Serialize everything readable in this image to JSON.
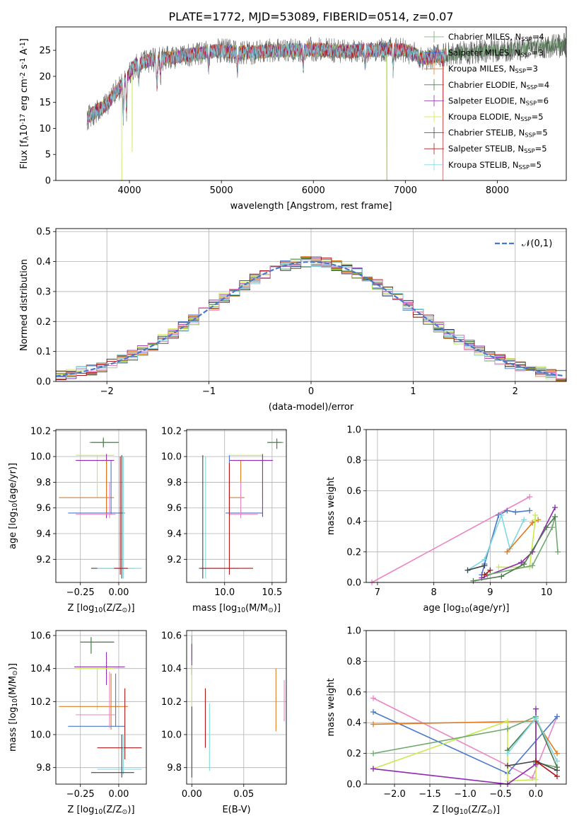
{
  "figure_title": "PLATE=1772, MJD=53089, FIBERID=0514, z=0.07",
  "models": [
    {
      "name": "Chabrier MILES",
      "nssp": "4",
      "color": "#6fa86f"
    },
    {
      "name": "Salpeter MILES",
      "nssp": "3",
      "color": "#4a78c8"
    },
    {
      "name": "Kroupa MILES",
      "nssp": "3",
      "color": "#e07b1f"
    },
    {
      "name": "Chabrier ELODIE",
      "nssp": "4",
      "color": "#4c7a4c"
    },
    {
      "name": "Salpeter ELODIE",
      "nssp": "6",
      "color": "#8e2bb0"
    },
    {
      "name": "Kroupa ELODIE",
      "nssp": "5",
      "color": "#c9ea4a"
    },
    {
      "name": "Chabrier STELIB",
      "nssp": "5",
      "color": "#444444"
    },
    {
      "name": "Salpeter STELIB",
      "nssp": "5",
      "color": "#b01818"
    },
    {
      "name": "Kroupa STELIB",
      "nssp": "5",
      "color": "#7fd8e2"
    }
  ],
  "chart_data": [
    {
      "id": "spectrum",
      "type": "line",
      "xlabel": "wavelength [Angstrom, rest frame]",
      "ylabel": "Flux [f$_\\lambda$10$^{-17}$ erg cm$^{-2}$ s$^{-1}$ A$^{-1}$]",
      "xlim": [
        3200,
        8750
      ],
      "ylim": [
        0,
        29.5
      ],
      "xticks": [
        4000,
        5000,
        6000,
        7000,
        8000
      ],
      "yticks": [
        0,
        5,
        10,
        15,
        20,
        25
      ],
      "continuum": [
        [
          3540,
          12
        ],
        [
          3650,
          13.5
        ],
        [
          3750,
          14.5
        ],
        [
          3850,
          17
        ],
        [
          3950,
          19
        ],
        [
          4050,
          22
        ],
        [
          4200,
          23
        ],
        [
          4400,
          23.5
        ],
        [
          4600,
          24
        ],
        [
          4800,
          24.5
        ],
        [
          5000,
          25
        ],
        [
          5200,
          24.5
        ],
        [
          5400,
          24.7
        ],
        [
          5600,
          25
        ],
        [
          5800,
          25
        ],
        [
          6000,
          25.2
        ],
        [
          6200,
          25
        ],
        [
          6400,
          24.8
        ],
        [
          6600,
          25
        ],
        [
          6800,
          25.2
        ],
        [
          7000,
          25
        ],
        [
          7200,
          23.5
        ],
        [
          7400,
          24
        ],
        [
          7600,
          24.5
        ],
        [
          7800,
          24.8
        ],
        [
          8000,
          25
        ],
        [
          8200,
          25.2
        ],
        [
          8400,
          25.5
        ],
        [
          8600,
          25.8
        ],
        [
          8750,
          26
        ]
      ],
      "absorption_features": [
        [
          3933,
          12
        ],
        [
          3968,
          13
        ],
        [
          4101,
          19
        ],
        [
          4300,
          18
        ],
        [
          4340,
          20
        ],
        [
          4861,
          21
        ],
        [
          5175,
          21
        ],
        [
          5890,
          22
        ],
        [
          6563,
          22
        ],
        [
          6867,
          21
        ],
        [
          7150,
          22.5
        ]
      ],
      "spikes": [
        [
          3915,
          0
        ],
        [
          6800,
          0
        ],
        [
          7400,
          0
        ]
      ],
      "legend_loc": "upper right"
    },
    {
      "id": "residuals",
      "type": "histogram",
      "xlabel": "(data-model)/error",
      "ylabel": "Normed distribution",
      "xlim": [
        -2.5,
        2.5
      ],
      "ylim": [
        0,
        0.51
      ],
      "xticks": [
        -2,
        -1,
        0,
        1,
        2
      ],
      "xtick_labels": [
        "−2",
        "−1",
        "0",
        "1",
        "2"
      ],
      "yticks": [
        0.0,
        0.1,
        0.2,
        0.3,
        0.4,
        0.5
      ],
      "bin_width": 0.1,
      "curve_label": "$\\mathcal{N}(0,1)$",
      "curve_color": "#4a78c8",
      "extra_colors": [
        "#e986c4"
      ],
      "grid": true,
      "legend_loc": "upper right"
    },
    {
      "id": "age_vs_Z",
      "type": "errorbar",
      "xlabel": "Z [log$_{10}$(Z/Z$_\\odot$)]",
      "ylabel": "age  [log$_{10}$(age/yr)]",
      "xlim": [
        -0.41,
        0.18
      ],
      "ylim": [
        9.02,
        10.21
      ],
      "xticks": [
        -0.25,
        0.0
      ],
      "xtick_labels": [
        "−0.25",
        "0.00"
      ],
      "yticks": [
        9.2,
        9.4,
        9.6,
        9.8,
        10.0,
        10.2
      ],
      "points": [
        {
          "c": "#6fa86f",
          "x": -0.1,
          "y": 10.11,
          "xl": -0.19,
          "xh": 0.0,
          "yl": 10.08,
          "yh": 10.15
        },
        {
          "c": "#4c7a4c",
          "x": -0.1,
          "y": 10.11,
          "xl": -0.18,
          "xh": -0.0,
          "yl": 10.07,
          "yh": 10.14
        },
        {
          "c": "#c9ea4a",
          "x": -0.14,
          "y": 10.01,
          "xl": -0.28,
          "xh": -0.03,
          "yl": 9.68,
          "yh": 10.01
        },
        {
          "c": "#8e2bb0",
          "x": -0.08,
          "y": 9.97,
          "xl": -0.28,
          "xh": -0.03,
          "yl": 9.52,
          "yh": 10.02
        },
        {
          "c": "#e07b1f",
          "x": -0.08,
          "y": 9.68,
          "xl": -0.39,
          "xh": -0.03,
          "yl": 9.55,
          "yh": 9.97
        },
        {
          "c": "#4a78c8",
          "x": -0.05,
          "y": 9.56,
          "xl": -0.33,
          "xh": 0.04,
          "yl": 9.55,
          "yh": 9.97
        },
        {
          "c": "#e986c4",
          "x": -0.06,
          "y": 9.55,
          "xl": -0.28,
          "xh": -0.02,
          "yl": 9.52,
          "yh": 9.8
        },
        {
          "c": "#444444",
          "x": 0.02,
          "y": 9.13,
          "xl": -0.18,
          "xh": 0.1,
          "yl": 9.05,
          "yh": 10.01
        },
        {
          "c": "#7fd8e2",
          "x": 0.03,
          "y": 9.13,
          "xl": -0.14,
          "xh": 0.15,
          "yl": 9.05,
          "yh": 10.0
        },
        {
          "c": "#b01818",
          "x": 0.01,
          "y": 9.13,
          "xl": -0.03,
          "xh": 0.06,
          "yl": 9.08,
          "yh": 10.0
        }
      ]
    },
    {
      "id": "age_vs_mass",
      "type": "errorbar",
      "xlabel": "mass [log$_{10}$(M/M$_\\odot$)]",
      "ylabel": "",
      "xlim": [
        9.6,
        10.65
      ],
      "ylim": [
        9.02,
        10.21
      ],
      "xticks": [
        10.0,
        10.5
      ],
      "xtick_labels": [
        "10.0",
        "10.5"
      ],
      "yticks": [
        9.2,
        9.4,
        9.6,
        9.8,
        10.0,
        10.2
      ],
      "points": [
        {
          "c": "#6fa86f",
          "x": 10.55,
          "y": 10.11,
          "xl": 10.45,
          "xh": 10.62,
          "yl": 10.06,
          "yh": 10.14
        },
        {
          "c": "#4c7a4c",
          "x": 10.55,
          "y": 10.11,
          "xl": 10.45,
          "xh": 10.6,
          "yl": 10.06,
          "yh": 10.14
        },
        {
          "c": "#c9ea4a",
          "x": 10.4,
          "y": 10.01,
          "xl": 10.05,
          "xh": 10.4,
          "yl": 9.68,
          "yh": 10.01
        },
        {
          "c": "#8e2bb0",
          "x": 10.4,
          "y": 9.97,
          "xl": 10.05,
          "xh": 10.51,
          "yl": 9.53,
          "yh": 10.02
        },
        {
          "c": "#e07b1f",
          "x": 10.17,
          "y": 9.68,
          "xl": 10.05,
          "xh": 10.21,
          "yl": 9.55,
          "yh": 9.97
        },
        {
          "c": "#4a78c8",
          "x": 10.05,
          "y": 9.56,
          "xl": 10.01,
          "xh": 10.4,
          "yl": 9.55,
          "yh": 10.01
        },
        {
          "c": "#e986c4",
          "x": 10.17,
          "y": 9.55,
          "xl": 10.05,
          "xh": 10.35,
          "yl": 9.52,
          "yh": 9.8
        },
        {
          "c": "#444444",
          "x": 9.77,
          "y": 9.13,
          "xl": 9.73,
          "xh": 10.15,
          "yl": 9.05,
          "yh": 10.01
        },
        {
          "c": "#7fd8e2",
          "x": 9.8,
          "y": 9.13,
          "xl": 9.76,
          "xh": 9.82,
          "yl": 9.05,
          "yh": 10.0
        },
        {
          "c": "#b01818",
          "x": 10.05,
          "y": 9.13,
          "xl": 9.75,
          "xh": 10.3,
          "yl": 9.08,
          "yh": 9.95
        }
      ]
    },
    {
      "id": "weight_vs_age",
      "type": "line",
      "xlabel": "age  [log$_{10}$(age/yr)]",
      "ylabel": "mass weight",
      "xlim": [
        6.8,
        10.35
      ],
      "ylim": [
        0,
        1.0
      ],
      "xticks": [
        7,
        8,
        9,
        10
      ],
      "xtick_labels": [
        "7",
        "8",
        "9",
        "10"
      ],
      "yticks": [
        0.0,
        0.2,
        0.4,
        0.6,
        0.8,
        1.0
      ],
      "series": [
        {
          "c": "#e986c4",
          "x": [
            6.9,
            9.7
          ],
          "y": [
            0.0,
            0.56
          ]
        },
        {
          "c": "#4a78c8",
          "x": [
            8.85,
            8.9,
            9.15,
            9.3,
            9.45,
            9.7
          ],
          "y": [
            0.05,
            0.12,
            0.44,
            0.47,
            0.46,
            0.47
          ]
        },
        {
          "c": "#7fd8e2",
          "x": [
            8.6,
            8.9,
            9.2,
            9.35,
            9.6
          ],
          "y": [
            0.08,
            0.15,
            0.44,
            0.22,
            0.41
          ]
        },
        {
          "c": "#e07b1f",
          "x": [
            9.3,
            9.75,
            9.85
          ],
          "y": [
            0.2,
            0.39,
            0.41
          ]
        },
        {
          "c": "#c9ea4a",
          "x": [
            9.15,
            9.7,
            9.8,
            9.8
          ],
          "y": [
            0.1,
            0.1,
            0.41,
            0.44
          ]
        },
        {
          "c": "#8e2bb0",
          "x": [
            8.85,
            9.55,
            9.75,
            10.15
          ],
          "y": [
            0.03,
            0.13,
            0.2,
            0.49
          ]
        },
        {
          "c": "#6fa86f",
          "x": [
            8.95,
            9.75,
            10.1,
            10.15,
            10.2
          ],
          "y": [
            0.05,
            0.11,
            0.36,
            0.43,
            0.2
          ]
        },
        {
          "c": "#4c7a4c",
          "x": [
            8.7,
            9.2,
            9.6,
            10.0,
            10.15
          ],
          "y": [
            0.01,
            0.04,
            0.12,
            0.36,
            0.43
          ]
        },
        {
          "c": "#444444",
          "x": [
            8.6,
            8.9
          ],
          "y": [
            0.08,
            0.11
          ]
        },
        {
          "c": "#b01818",
          "x": [
            8.9,
            9.0
          ],
          "y": [
            0.05,
            0.08
          ]
        }
      ]
    },
    {
      "id": "mass_vs_Z",
      "type": "errorbar",
      "xlabel": "Z [log$_{10}$(Z/Z$_\\odot$)]",
      "ylabel": "mass [log$_{10}$(M/M$_\\odot$)]",
      "xlim": [
        -0.41,
        0.18
      ],
      "ylim": [
        9.7,
        10.63
      ],
      "xticks": [
        -0.25,
        0.0
      ],
      "xtick_labels": [
        "−0.25",
        "0.00"
      ],
      "yticks": [
        9.8,
        10.0,
        10.2,
        10.4,
        10.6
      ],
      "points": [
        {
          "c": "#6fa86f",
          "x": -0.18,
          "y": 10.56,
          "xl": -0.25,
          "xh": -0.03,
          "yl": 10.49,
          "yh": 10.59
        },
        {
          "c": "#4c7a4c",
          "x": -0.18,
          "y": 10.56,
          "xl": -0.25,
          "xh": -0.03,
          "yl": 10.49,
          "yh": 10.59
        },
        {
          "c": "#8e2bb0",
          "x": -0.08,
          "y": 10.41,
          "xl": -0.29,
          "xh": 0.04,
          "yl": 10.3,
          "yh": 10.5
        },
        {
          "c": "#c9ea4a",
          "x": -0.14,
          "y": 10.4,
          "xl": -0.28,
          "xh": -0.03,
          "yl": 10.15,
          "yh": 10.4
        },
        {
          "c": "#e07b1f",
          "x": -0.05,
          "y": 10.17,
          "xl": -0.39,
          "xh": 0.06,
          "yl": 10.03,
          "yh": 10.37
        },
        {
          "c": "#4a78c8",
          "x": -0.02,
          "y": 10.05,
          "xl": -0.33,
          "xh": 0.04,
          "yl": 10.05,
          "yh": 10.37
        },
        {
          "c": "#e986c4",
          "x": -0.06,
          "y": 10.12,
          "xl": -0.28,
          "xh": -0.02,
          "yl": 10.04,
          "yh": 10.38
        },
        {
          "c": "#b01818",
          "x": 0.04,
          "y": 9.92,
          "xl": -0.14,
          "xh": 0.15,
          "yl": 9.85,
          "yh": 10.28
        },
        {
          "c": "#7fd8e2",
          "x": 0.03,
          "y": 9.79,
          "xl": -0.14,
          "xh": 0.15,
          "yl": 9.76,
          "yh": 10.0
        },
        {
          "c": "#444444",
          "x": 0.02,
          "y": 9.77,
          "xl": -0.18,
          "xh": 0.1,
          "yl": 9.74,
          "yh": 10.0
        }
      ]
    },
    {
      "id": "mass_vs_EBV",
      "type": "errorbar",
      "xlabel": "E(B-V)",
      "ylabel": "",
      "xlim": [
        -0.005,
        0.091
      ],
      "ylim": [
        9.7,
        10.63
      ],
      "xticks": [
        0.0,
        0.05
      ],
      "xtick_labels": [
        "0.00",
        "0.05"
      ],
      "yticks": [
        9.8,
        10.0,
        10.2,
        10.4,
        10.6
      ],
      "points": [
        {
          "c": "#6fa86f",
          "x": 0.0,
          "y": 10.56,
          "xl": 0.0,
          "xh": 0.0,
          "yl": 10.45,
          "yh": 10.6
        },
        {
          "c": "#8e2bb0",
          "x": 0.0,
          "y": 10.41,
          "xl": 0.0,
          "xh": 0.0,
          "yl": 10.36,
          "yh": 10.55
        },
        {
          "c": "#c9ea4a",
          "x": 0.0,
          "y": 10.4,
          "xl": 0.0,
          "xh": 0.0,
          "yl": 10.16,
          "yh": 10.42
        },
        {
          "c": "#444444",
          "x": 0.0,
          "y": 9.77,
          "xl": 0.0,
          "xh": 0.0,
          "yl": 9.74,
          "yh": 10.17
        },
        {
          "c": "#b01818",
          "x": 0.013,
          "y": 9.92,
          "xl": 0.013,
          "xh": 0.013,
          "yl": 9.92,
          "yh": 10.28
        },
        {
          "c": "#7fd8e2",
          "x": 0.017,
          "y": 9.79,
          "xl": 0.017,
          "xh": 0.017,
          "yl": 9.78,
          "yh": 10.19
        },
        {
          "c": "#e07b1f",
          "x": 0.081,
          "y": 10.17,
          "xl": 0.081,
          "xh": 0.081,
          "yl": 10.02,
          "yh": 10.4
        },
        {
          "c": "#e986c4",
          "x": 0.089,
          "y": 10.12,
          "xl": 0.089,
          "xh": 0.089,
          "yl": 10.08,
          "yh": 10.33
        }
      ]
    },
    {
      "id": "weight_vs_Z",
      "type": "line",
      "xlabel": "Z [log$_{10}$(Z/Z$_\\odot$)]",
      "ylabel": "mass weight",
      "xlim": [
        -2.4,
        0.43
      ],
      "ylim": [
        0,
        1.0
      ],
      "xticks": [
        -2.0,
        -1.5,
        -1.0,
        -0.5,
        0.0
      ],
      "xtick_labels": [
        "−2.0",
        "−1.5",
        "−1.0",
        "−0.5",
        "0.0"
      ],
      "yticks": [
        0.0,
        0.2,
        0.4,
        0.6,
        0.8,
        1.0
      ],
      "series": [
        {
          "c": "#e986c4",
          "x": [
            -2.3,
            -0.05,
            0.3
          ],
          "y": [
            0.56,
            0.04,
            0.44
          ]
        },
        {
          "c": "#4a78c8",
          "x": [
            -2.3,
            -0.4,
            0.3
          ],
          "y": [
            0.47,
            0.07,
            0.44
          ]
        },
        {
          "c": "#e07b1f",
          "x": [
            -2.3,
            0.0,
            0.3
          ],
          "y": [
            0.39,
            0.41,
            0.2
          ]
        },
        {
          "c": "#c9ea4a",
          "x": [
            -2.3,
            -0.4,
            -0.4,
            0.0,
            0.0
          ],
          "y": [
            0.1,
            0.41,
            0.02,
            0.03,
            0.44
          ]
        },
        {
          "c": "#6fa86f",
          "x": [
            -2.3,
            -0.4,
            0.0,
            0.0,
            0.3
          ],
          "y": [
            0.2,
            0.36,
            0.44,
            0.14,
            0.11
          ]
        },
        {
          "c": "#8e2bb0",
          "x": [
            -2.3,
            -0.4,
            0.0,
            0.0
          ],
          "y": [
            0.1,
            0.0,
            0.13,
            0.49
          ]
        },
        {
          "c": "#4c7a4c",
          "x": [
            -0.4,
            0.0,
            0.3
          ],
          "y": [
            0.22,
            0.43,
            0.11
          ]
        },
        {
          "c": "#7fd8e2",
          "x": [
            -0.4,
            0.0,
            0.3
          ],
          "y": [
            0.2,
            0.43,
            0.15
          ]
        },
        {
          "c": "#444444",
          "x": [
            -0.4,
            0.0,
            0.3
          ],
          "y": [
            0.12,
            0.15,
            0.09
          ]
        },
        {
          "c": "#b01818",
          "x": [
            0.0,
            0.3
          ],
          "y": [
            0.15,
            0.05
          ]
        }
      ]
    }
  ]
}
